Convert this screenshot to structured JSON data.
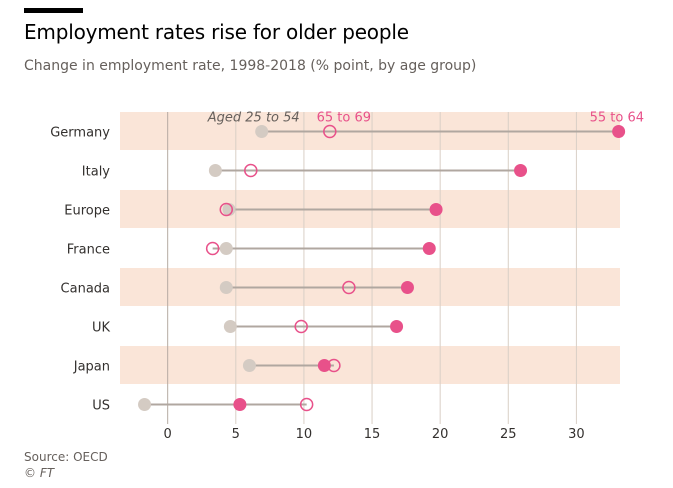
{
  "title": "Employment rates rise for older people",
  "subtitle": "Change in employment rate, 1998-2018 (% point, by age group)",
  "source": "Source: OECD",
  "credit": "© FT",
  "colors": {
    "band": "#fae5d8",
    "grid": "#d9cfc6",
    "zero": "#b5aaa2",
    "connector": "#b0a7a0",
    "aged_25_54": "#d4cbc3",
    "age_65_69": "#e8518a",
    "age_55_64": "#e8518a",
    "text": "#33302e",
    "label_55_64": "#e8518a",
    "label_65_69": "#e8518a",
    "label_25_54": "#66605c"
  },
  "chart_data": {
    "type": "dot-plot",
    "title": "Employment rates rise for older people",
    "subtitle": "Change in employment rate, 1998-2018 (% point, by age group)",
    "categories": [
      "Germany",
      "Italy",
      "Europe",
      "France",
      "Canada",
      "UK",
      "Japan",
      "US"
    ],
    "series": [
      {
        "name": "Aged 25 to 54",
        "marker": "filled-grey",
        "values": [
          6.9,
          3.5,
          4.5,
          4.3,
          4.3,
          4.6,
          6.0,
          -1.7
        ]
      },
      {
        "name": "65 to 69",
        "marker": "hollow-pink",
        "values": [
          11.9,
          6.1,
          4.3,
          3.3,
          13.3,
          9.8,
          12.2,
          10.2
        ]
      },
      {
        "name": "55 to 64",
        "marker": "filled-pink",
        "values": [
          33.1,
          25.9,
          19.7,
          19.2,
          17.6,
          16.8,
          11.5,
          5.3
        ]
      }
    ],
    "xlim": [
      -3.5,
      33.2
    ],
    "xticks": [
      0,
      5,
      10,
      15,
      20,
      25,
      30
    ],
    "xtick_labels": [
      "0",
      "5",
      "10",
      "15",
      "20",
      "25",
      "30"
    ],
    "grid": true,
    "banded_rows": true,
    "legend": "inline labels above Germany row"
  }
}
